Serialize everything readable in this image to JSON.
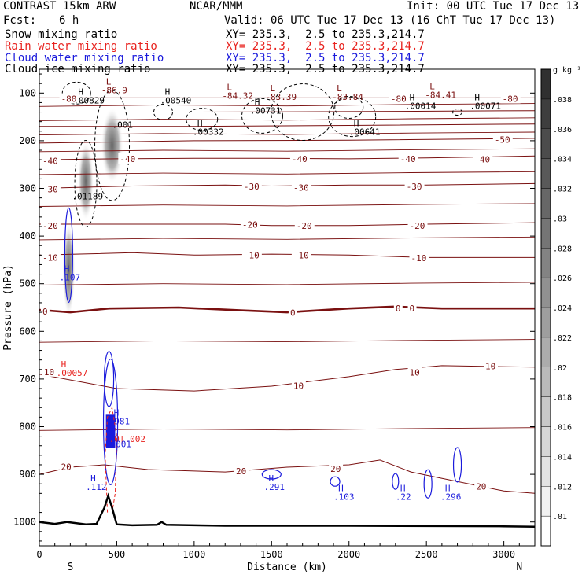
{
  "header": {
    "model": "CONTRAST 15km ARW",
    "center": "NCAR/MMM",
    "init": "Init: 00 UTC Tue 17 Dec 13",
    "fcst_label": "Fcst:",
    "fcst_value": "6 h",
    "valid": "Valid: 06 UTC Tue 17 Dec 13 (16 ChT Tue 17 Dec 13)"
  },
  "legend": [
    {
      "label": "Snow mixing ratio",
      "xy": "XY= 235.3,  2.5 to 235.3,214.7",
      "color": "#000000"
    },
    {
      "label": "Rain water mixing ratio",
      "xy": "XY= 235.3,  2.5 to 235.3,214.7",
      "color": "#e8221e"
    },
    {
      "label": "Cloud water mixing ratio",
      "xy": "XY= 235.3,  2.5 to 235.3,214.7",
      "color": "#1a1adc"
    },
    {
      "label": "Cloud ice mixing ratio",
      "xy": "XY= 235.3,  2.5 to 235.3,214.7",
      "color": "#000000"
    }
  ],
  "colors": {
    "temperature": "#7a1010",
    "snow": "#000000",
    "rain": "#e8221e",
    "cloud": "#1a1adc",
    "terrain": "#000000"
  },
  "chart_data": {
    "type": "cross-section",
    "xlabel": "Distance (km)",
    "ylabel": "Pressure (hPa)",
    "xlim": [
      0,
      3200
    ],
    "ylim": [
      1050,
      50
    ],
    "x_ticks": [
      0,
      500,
      1000,
      1500,
      2000,
      2500,
      3000
    ],
    "y_ticks": [
      100,
      200,
      300,
      400,
      500,
      600,
      700,
      800,
      900,
      1000
    ],
    "end_labels": {
      "left": "S",
      "right": "N"
    },
    "colorbar": {
      "unit": "g kg⁻¹",
      "ticks": [
        ".01",
        ".012",
        ".014",
        ".016",
        ".018",
        ".02",
        ".022",
        ".024",
        ".026",
        ".028",
        ".03",
        ".032",
        ".034",
        ".036",
        ".038"
      ]
    },
    "temperature_isotherms": [
      {
        "value": 20,
        "points": [
          [
            0,
            900
          ],
          [
            200,
            885
          ],
          [
            420,
            880
          ],
          [
            700,
            890
          ],
          [
            1200,
            895
          ],
          [
            1600,
            885
          ],
          [
            2000,
            880
          ],
          [
            2200,
            870
          ],
          [
            2400,
            895
          ],
          [
            2700,
            915
          ],
          [
            3000,
            935
          ],
          [
            3200,
            940
          ]
        ]
      },
      {
        "value": 10,
        "points": [
          [
            0,
            690
          ],
          [
            500,
            720
          ],
          [
            1000,
            725
          ],
          [
            1500,
            715
          ],
          [
            2000,
            695
          ],
          [
            2300,
            680
          ],
          [
            2600,
            672
          ],
          [
            3200,
            675
          ]
        ]
      },
      {
        "value": 0,
        "points": [
          [
            0,
            555
          ],
          [
            200,
            560
          ],
          [
            450,
            552
          ],
          [
            900,
            550
          ],
          [
            1300,
            556
          ],
          [
            1600,
            560
          ],
          [
            2000,
            552
          ],
          [
            2300,
            548
          ],
          [
            2600,
            552
          ],
          [
            3200,
            552
          ]
        ]
      },
      {
        "value": -10,
        "points": [
          [
            0,
            440
          ],
          [
            600,
            435
          ],
          [
            1000,
            440
          ],
          [
            1500,
            438
          ],
          [
            2000,
            440
          ],
          [
            2500,
            445
          ],
          [
            3200,
            445
          ]
        ]
      },
      {
        "value": -20,
        "points": [
          [
            0,
            375
          ],
          [
            700,
            375
          ],
          [
            1200,
            375
          ],
          [
            1500,
            378
          ],
          [
            2000,
            378
          ],
          [
            2500,
            375
          ],
          [
            3200,
            372
          ]
        ]
      },
      {
        "value": -30,
        "points": [
          [
            0,
            300
          ],
          [
            600,
            295
          ],
          [
            1200,
            293
          ],
          [
            1500,
            295
          ],
          [
            2000,
            293
          ],
          [
            2500,
            293
          ],
          [
            3200,
            290
          ]
        ]
      },
      {
        "value": -40,
        "points": [
          [
            0,
            240
          ],
          [
            500,
            238
          ],
          [
            1000,
            237
          ],
          [
            1500,
            237
          ],
          [
            2000,
            238
          ],
          [
            2500,
            236
          ],
          [
            3200,
            232
          ]
        ]
      },
      {
        "value": -50,
        "points": [
          [
            0,
            205
          ],
          [
            1000,
            200
          ],
          [
            2000,
            199
          ],
          [
            3200,
            195
          ]
        ]
      },
      {
        "value": -60,
        "points": [
          [
            0,
            170
          ],
          [
            1000,
            170
          ],
          [
            2000,
            168
          ],
          [
            3200,
            165
          ]
        ]
      },
      {
        "value": -70,
        "points": [
          [
            0,
            140
          ],
          [
            1000,
            140
          ],
          [
            2000,
            139
          ],
          [
            3200,
            137
          ]
        ]
      },
      {
        "value": -80,
        "points": [
          [
            0,
            110
          ],
          [
            1000,
            110
          ],
          [
            2000,
            110
          ],
          [
            3200,
            110
          ]
        ]
      }
    ],
    "temperature_labels": [
      {
        "x": 140,
        "p": 112,
        "text": "-80"
      },
      {
        "x": 2270,
        "p": 112,
        "text": "-80"
      },
      {
        "x": 2990,
        "p": 112,
        "text": "-80"
      },
      {
        "x": 2940,
        "p": 198,
        "text": "-50"
      },
      {
        "x": 20,
        "p": 242,
        "text": "-40"
      },
      {
        "x": 520,
        "p": 238,
        "text": "-40"
      },
      {
        "x": 1630,
        "p": 238,
        "text": "-40"
      },
      {
        "x": 2330,
        "p": 238,
        "text": "-40"
      },
      {
        "x": 2810,
        "p": 239,
        "text": "-40"
      },
      {
        "x": 20,
        "p": 302,
        "text": "-30"
      },
      {
        "x": 1320,
        "p": 296,
        "text": "-30"
      },
      {
        "x": 1640,
        "p": 298,
        "text": "-30"
      },
      {
        "x": 2370,
        "p": 296,
        "text": "-30"
      },
      {
        "x": 20,
        "p": 378,
        "text": "-20"
      },
      {
        "x": 1310,
        "p": 376,
        "text": "-20"
      },
      {
        "x": 1660,
        "p": 378,
        "text": "-20"
      },
      {
        "x": 2390,
        "p": 378,
        "text": "-20"
      },
      {
        "x": 20,
        "p": 445,
        "text": "-10"
      },
      {
        "x": 1320,
        "p": 440,
        "text": "-10"
      },
      {
        "x": 1640,
        "p": 440,
        "text": "-10"
      },
      {
        "x": 2400,
        "p": 446,
        "text": "-10"
      },
      {
        "x": 20,
        "p": 558,
        "text": "0"
      },
      {
        "x": 1620,
        "p": 561,
        "text": "0"
      },
      {
        "x": 2300,
        "p": 552,
        "text": "0"
      },
      {
        "x": 2390,
        "p": 552,
        "text": "0"
      },
      {
        "x": 1640,
        "p": 714,
        "text": "10"
      },
      {
        "x": 2390,
        "p": 686,
        "text": "10"
      },
      {
        "x": 2880,
        "p": 673,
        "text": "10"
      },
      {
        "x": 30,
        "p": 685,
        "text": "10"
      },
      {
        "x": 140,
        "p": 884,
        "text": "20"
      },
      {
        "x": 1270,
        "p": 893,
        "text": "20"
      },
      {
        "x": 1880,
        "p": 888,
        "text": "20"
      },
      {
        "x": 2820,
        "p": 925,
        "text": "20"
      }
    ],
    "extrema": [
      {
        "x": 400,
        "p": 82,
        "sym": "L",
        "value": "-86.9",
        "color": "#7a1010"
      },
      {
        "x": 1180,
        "p": 94,
        "sym": "L",
        "value": "-84.32",
        "color": "#7a1010"
      },
      {
        "x": 1460,
        "p": 96,
        "sym": "L",
        "value": "-83.39",
        "color": "#7a1010"
      },
      {
        "x": 1890,
        "p": 96,
        "sym": "L",
        "value": "-83.84",
        "color": "#7a1010"
      },
      {
        "x": 2490,
        "p": 92,
        "sym": "L",
        "value": "-84.41",
        "color": "#7a1010"
      },
      {
        "x": 220,
        "p": 104,
        "sym": "H",
        "value": ".00829",
        "color": "#000000"
      },
      {
        "x": 780,
        "p": 104,
        "sym": "H",
        "value": ".00540",
        "color": "#000000"
      },
      {
        "x": 2360,
        "p": 115,
        "sym": "H",
        "value": ".00014",
        "color": "#000000"
      },
      {
        "x": 2780,
        "p": 115,
        "sym": "H",
        "value": ".00071",
        "color": "#000000"
      },
      {
        "x": 1360,
        "p": 125,
        "sym": "H",
        "value": ".00731",
        "color": "#000000"
      },
      {
        "x": 470,
        "p": 155,
        "sym": "",
        "value": ".001",
        "color": "#000000"
      },
      {
        "x": 990,
        "p": 170,
        "sym": "H",
        "value": ".00332",
        "color": "#000000"
      },
      {
        "x": 2000,
        "p": 170,
        "sym": "H",
        "value": ".00641",
        "color": "#000000"
      },
      {
        "x": 210,
        "p": 305,
        "sym": "",
        "value": ".01189",
        "color": "#000000"
      },
      {
        "x": 130,
        "p": 475,
        "sym": "H",
        "value": ".107",
        "color": "#1a1adc"
      },
      {
        "x": 110,
        "p": 675,
        "sym": "H",
        "value": ".00057",
        "color": "#e8221e"
      },
      {
        "x": 450,
        "p": 777,
        "sym": "H",
        "value": ".981",
        "color": "#1a1adc"
      },
      {
        "x": 450,
        "p": 814,
        "sym": "",
        "value": ".0|.002",
        "color": "#e8221e"
      },
      {
        "x": 460,
        "p": 825,
        "sym": "",
        "value": ".001",
        "color": "#1a1adc"
      },
      {
        "x": 300,
        "p": 915,
        "sym": "H",
        "value": ".112",
        "color": "#1a1adc"
      },
      {
        "x": 1450,
        "p": 915,
        "sym": "H",
        "value": ".291",
        "color": "#1a1adc"
      },
      {
        "x": 1900,
        "p": 935,
        "sym": "H",
        "value": ".103",
        "color": "#1a1adc"
      },
      {
        "x": 2300,
        "p": 935,
        "sym": "H",
        "value": ".22",
        "color": "#1a1adc"
      },
      {
        "x": 2590,
        "p": 935,
        "sym": "H",
        "value": ".296",
        "color": "#1a1adc"
      }
    ],
    "terrain_surface": [
      [
        0,
        1000
      ],
      [
        100,
        1004
      ],
      [
        180,
        1000
      ],
      [
        300,
        1005
      ],
      [
        370,
        1004
      ],
      [
        420,
        970
      ],
      [
        445,
        945
      ],
      [
        470,
        970
      ],
      [
        500,
        1005
      ],
      [
        600,
        1007
      ],
      [
        760,
        1006
      ],
      [
        790,
        1000
      ],
      [
        820,
        1006
      ],
      [
        1200,
        1008
      ],
      [
        2000,
        1008
      ],
      [
        3000,
        1009
      ],
      [
        3200,
        1010
      ]
    ]
  }
}
